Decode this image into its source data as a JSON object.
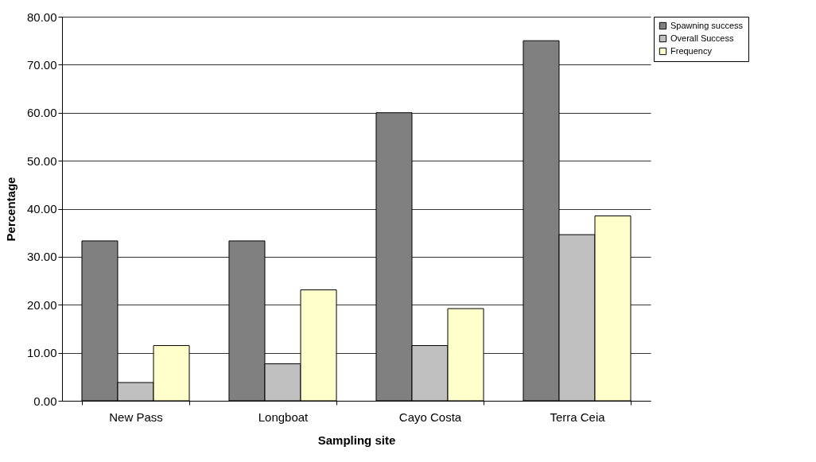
{
  "chart_data": {
    "type": "bar",
    "xlabel": "Sampling site",
    "ylabel": "Percentage",
    "categories": [
      "New Pass",
      "Longboat",
      "Cayo Costa",
      "Terra Ceia"
    ],
    "series": [
      {
        "name": "Spawning success",
        "color": "#808080",
        "values": [
          33.3,
          33.3,
          60.0,
          75.0
        ]
      },
      {
        "name": "Overall Success",
        "color": "#c0c0c0",
        "values": [
          3.8,
          7.7,
          11.5,
          34.6
        ]
      },
      {
        "name": "Frequency",
        "color": "#ffffcc",
        "values": [
          11.5,
          23.1,
          19.2,
          38.5
        ]
      }
    ],
    "ylim": [
      0,
      80
    ],
    "yticks": [
      {
        "value": 0,
        "label": "0.00"
      },
      {
        "value": 10,
        "label": "10.00"
      },
      {
        "value": 20,
        "label": "20.00"
      },
      {
        "value": 30,
        "label": "30.00"
      },
      {
        "value": 40,
        "label": "40.00"
      },
      {
        "value": 50,
        "label": "50.00"
      },
      {
        "value": 60,
        "label": "60.00"
      },
      {
        "value": 70,
        "label": "70.00"
      },
      {
        "value": 80,
        "label": "80.00"
      }
    ],
    "grid": "y",
    "legend": "right"
  }
}
